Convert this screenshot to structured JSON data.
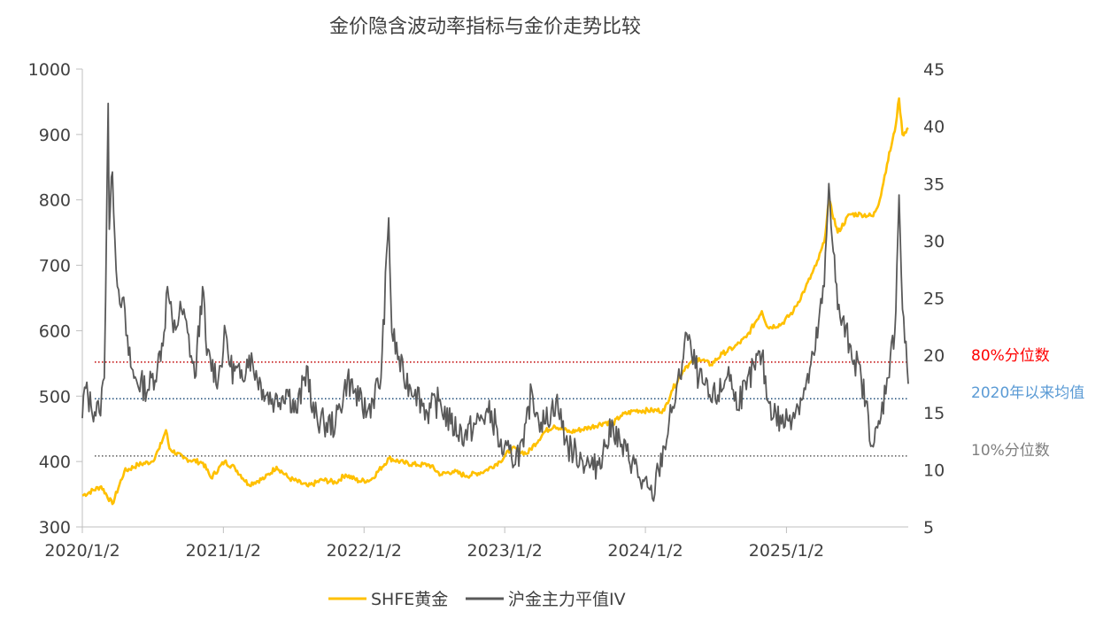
{
  "chart_data": {
    "type": "line",
    "title": "金价隐含波动率指标与金价走势比较",
    "x_ticks": [
      "2020/1/2",
      "2021/1/2",
      "2022/1/2",
      "2023/1/2",
      "2024/1/2",
      "2025/1/2"
    ],
    "x_range": [
      "2020/1/2",
      "2025/11/14"
    ],
    "y_left": {
      "min": 300,
      "max": 1000,
      "ticks": [
        300,
        400,
        500,
        600,
        700,
        800,
        900,
        1000
      ]
    },
    "y_right": {
      "min": 5,
      "max": 45,
      "ticks": [
        5,
        10,
        15,
        20,
        25,
        30,
        35,
        40,
        45
      ]
    },
    "grid": false,
    "legend_position": "bottom",
    "series": [
      {
        "name": "SHFE黄金",
        "axis": "left",
        "color": "#FFC000",
        "points": [
          [
            "2020/1/2",
            348
          ],
          [
            "2020/2/20",
            362
          ],
          [
            "2020/3/20",
            335
          ],
          [
            "2020/4/20",
            385
          ],
          [
            "2020/5/25",
            395
          ],
          [
            "2020/7/1",
            400
          ],
          [
            "2020/7/20",
            420
          ],
          [
            "2020/8/6",
            448
          ],
          [
            "2020/8/15",
            420
          ],
          [
            "2020/9/20",
            405
          ],
          [
            "2020/11/10",
            398
          ],
          [
            "2020/12/1",
            375
          ],
          [
            "2021/1/5",
            400
          ],
          [
            "2021/2/1",
            390
          ],
          [
            "2021/3/8",
            365
          ],
          [
            "2021/4/20",
            375
          ],
          [
            "2021/5/20",
            392
          ],
          [
            "2021/6/20",
            375
          ],
          [
            "2021/8/10",
            362
          ],
          [
            "2021/9/15",
            372
          ],
          [
            "2021/10/20",
            368
          ],
          [
            "2021/11/15",
            380
          ],
          [
            "2021/12/20",
            370
          ],
          [
            "2022/1/20",
            372
          ],
          [
            "2022/3/8",
            405
          ],
          [
            "2022/4/15",
            398
          ],
          [
            "2022/5/20",
            395
          ],
          [
            "2022/6/20",
            395
          ],
          [
            "2022/7/20",
            380
          ],
          [
            "2022/8/20",
            385
          ],
          [
            "2022/9/25",
            378
          ],
          [
            "2022/11/10",
            385
          ],
          [
            "2022/12/20",
            400
          ],
          [
            "2023/1/20",
            420
          ],
          [
            "2023/3/1",
            412
          ],
          [
            "2023/4/15",
            445
          ],
          [
            "2023/5/10",
            455
          ],
          [
            "2023/6/20",
            445
          ],
          [
            "2023/8/10",
            452
          ],
          [
            "2023/9/20",
            460
          ],
          [
            "2023/10/10",
            458
          ],
          [
            "2023/10/30",
            470
          ],
          [
            "2023/12/5",
            478
          ],
          [
            "2024/1/20",
            478
          ],
          [
            "2024/2/20",
            478
          ],
          [
            "2024/3/10",
            508
          ],
          [
            "2024/4/15",
            545
          ],
          [
            "2024/5/20",
            558
          ],
          [
            "2024/6/20",
            548
          ],
          [
            "2024/7/20",
            565
          ],
          [
            "2024/8/20",
            575
          ],
          [
            "2024/9/20",
            590
          ],
          [
            "2024/10/30",
            630
          ],
          [
            "2024/11/15",
            605
          ],
          [
            "2024/12/20",
            610
          ],
          [
            "2025/1/20",
            630
          ],
          [
            "2025/2/20",
            665
          ],
          [
            "2025/3/20",
            700
          ],
          [
            "2025/4/10",
            735
          ],
          [
            "2025/4/22",
            800
          ],
          [
            "2025/5/15",
            750
          ],
          [
            "2025/6/15",
            778
          ],
          [
            "2025/7/15",
            778
          ],
          [
            "2025/8/15",
            775
          ],
          [
            "2025/9/1",
            800
          ],
          [
            "2025/9/20",
            855
          ],
          [
            "2025/10/10",
            905
          ],
          [
            "2025/10/21",
            955
          ],
          [
            "2025/10/30",
            900
          ],
          [
            "2025/11/14",
            910
          ]
        ]
      },
      {
        "name": "沪金主力平值IV",
        "axis": "right",
        "color": "#595959",
        "points": [
          [
            "2020/1/2",
            14.5
          ],
          [
            "2020/1/8",
            17.2
          ],
          [
            "2020/1/25",
            15.5
          ],
          [
            "2020/2/15",
            15
          ],
          [
            "2020/2/28",
            18
          ],
          [
            "2020/3/9",
            42
          ],
          [
            "2020/3/12",
            31
          ],
          [
            "2020/3/20",
            36
          ],
          [
            "2020/4/2",
            26
          ],
          [
            "2020/4/15",
            25
          ],
          [
            "2020/5/1",
            20
          ],
          [
            "2020/5/15",
            18
          ],
          [
            "2020/6/20",
            17
          ],
          [
            "2020/7/15",
            19
          ],
          [
            "2020/8/1",
            22
          ],
          [
            "2020/8/10",
            26
          ],
          [
            "2020/8/25",
            22
          ],
          [
            "2020/9/15",
            24
          ],
          [
            "2020/10/1",
            22
          ],
          [
            "2020/10/20",
            18
          ],
          [
            "2020/11/9",
            26
          ],
          [
            "2020/11/20",
            20
          ],
          [
            "2020/12/20",
            18
          ],
          [
            "2021/1/8",
            22
          ],
          [
            "2021/1/20",
            19
          ],
          [
            "2021/2/15",
            18
          ],
          [
            "2021/3/10",
            20
          ],
          [
            "2021/4/15",
            17
          ],
          [
            "2021/5/15",
            16
          ],
          [
            "2021/6/17",
            17
          ],
          [
            "2021/7/10",
            15
          ],
          [
            "2021/8/9",
            19
          ],
          [
            "2021/8/20",
            15
          ],
          [
            "2021/9/20",
            14
          ],
          [
            "2021/10/20",
            14
          ],
          [
            "2021/11/20",
            18
          ],
          [
            "2021/12/20",
            16
          ],
          [
            "2022/1/10",
            15
          ],
          [
            "2022/2/15",
            18
          ],
          [
            "2022/3/7",
            32
          ],
          [
            "2022/3/15",
            22
          ],
          [
            "2022/4/15",
            18
          ],
          [
            "2022/5/15",
            17
          ],
          [
            "2022/6/15",
            15
          ],
          [
            "2022/7/15",
            16
          ],
          [
            "2022/8/15",
            14
          ],
          [
            "2022/9/20",
            13
          ],
          [
            "2022/10/20",
            14
          ],
          [
            "2022/11/20",
            15
          ],
          [
            "2022/12/10",
            14
          ],
          [
            "2022/12/20",
            12
          ],
          [
            "2023/1/20",
            11
          ],
          [
            "2023/2/20",
            12
          ],
          [
            "2023/3/13",
            17
          ],
          [
            "2023/3/25",
            15
          ],
          [
            "2023/4/15",
            14
          ],
          [
            "2023/5/15",
            16
          ],
          [
            "2023/6/15",
            12
          ],
          [
            "2023/7/20",
            11
          ],
          [
            "2023/8/20",
            10
          ],
          [
            "2023/9/20",
            12
          ],
          [
            "2023/10/10",
            14
          ],
          [
            "2023/10/30",
            12
          ],
          [
            "2023/12/5",
            10.5
          ],
          [
            "2023/12/20",
            9
          ],
          [
            "2024/1/20",
            7.5
          ],
          [
            "2024/2/5",
            10
          ],
          [
            "2024/2/20",
            12
          ],
          [
            "2024/3/10",
            15
          ],
          [
            "2024/4/1",
            18
          ],
          [
            "2024/4/15",
            22
          ],
          [
            "2024/5/1",
            20
          ],
          [
            "2024/5/20",
            18
          ],
          [
            "2024/6/20",
            16
          ],
          [
            "2024/7/20",
            17
          ],
          [
            "2024/8/5",
            19
          ],
          [
            "2024/8/20",
            16
          ],
          [
            "2024/9/20",
            17
          ],
          [
            "2024/10/10",
            19
          ],
          [
            "2024/10/30",
            20
          ],
          [
            "2024/11/15",
            16
          ],
          [
            "2024/12/20",
            14
          ],
          [
            "2025/1/20",
            15
          ],
          [
            "2025/2/20",
            17
          ],
          [
            "2025/3/15",
            20
          ],
          [
            "2025/4/10",
            26
          ],
          [
            "2025/4/22",
            35
          ],
          [
            "2025/5/15",
            24
          ],
          [
            "2025/6/15",
            21
          ],
          [
            "2025/7/15",
            18
          ],
          [
            "2025/8/15",
            12
          ],
          [
            "2025/9/1",
            14
          ],
          [
            "2025/9/20",
            18
          ],
          [
            "2025/10/10",
            22
          ],
          [
            "2025/10/21",
            34
          ],
          [
            "2025/10/30",
            24
          ],
          [
            "2025/11/14",
            17.5
          ]
        ]
      }
    ],
    "reference_lines": [
      {
        "label": "80%分位数",
        "value": 19.4,
        "color": "#C00000",
        "label_color": "#FF0000"
      },
      {
        "label": "2020年以来均值",
        "value": 16.2,
        "color": "#1F4E79",
        "label_color": "#5B9BD5"
      },
      {
        "label": "10%分位数",
        "value": 11.2,
        "color": "#595959",
        "label_color": "#7F7F7F"
      }
    ]
  }
}
